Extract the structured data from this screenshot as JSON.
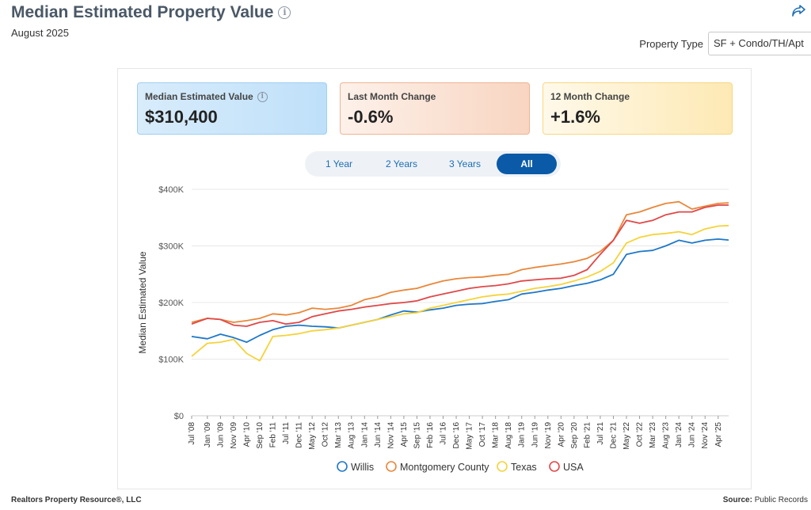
{
  "header": {
    "title": "Median Estimated Property Value",
    "subtitle": "August 2025",
    "property_type_label": "Property Type",
    "property_type_value": "SF + Condo/TH/Apt"
  },
  "kpis": [
    {
      "label": "Median Estimated Value",
      "value": "$310,400"
    },
    {
      "label": "Last Month Change",
      "value": "-0.6%"
    },
    {
      "label": "12 Month Change",
      "value": "+1.6%"
    }
  ],
  "tabs": [
    {
      "label": "1 Year"
    },
    {
      "label": "2 Years"
    },
    {
      "label": "3 Years"
    },
    {
      "label": "All"
    }
  ],
  "footer": {
    "left": "Realtors Property Resource®, LLC",
    "right_label": "Source:",
    "right_value": "Public Records"
  },
  "colors": {
    "willis": "#1f78c8",
    "montgomery": "#e8873a",
    "texas": "#f5d33a",
    "usa": "#e04848",
    "active_tab": "#0a5aa8"
  },
  "chart_data": {
    "type": "line",
    "ylabel": "Median Estimated Value",
    "ylim": [
      0,
      400000
    ],
    "yticks": [
      0,
      100000,
      200000,
      300000,
      400000
    ],
    "ytick_labels": [
      "$0",
      "$100K",
      "$200K",
      "$300K",
      "$400K"
    ],
    "x_start": "Jul '08",
    "x_end": "Aug '25",
    "x_tick_labels": [
      "Jul '08",
      "Jan '09",
      "Jun '09",
      "Nov '09",
      "Apr '10",
      "Sep '10",
      "Feb '11",
      "Jul '11",
      "Dec '11",
      "May '12",
      "Oct '12",
      "Mar '13",
      "Aug '13",
      "Jan '14",
      "Jun '14",
      "Nov '14",
      "Apr '15",
      "Sep '15",
      "Feb '16",
      "Jul '16",
      "Dec '16",
      "May '17",
      "Oct '17",
      "Mar '18",
      "Aug '18",
      "Jan '19",
      "Jun '19",
      "Nov '19",
      "Apr '20",
      "Sep '20",
      "Feb '21",
      "Jul '21",
      "Dec '21",
      "May '22",
      "Oct '22",
      "Mar '23",
      "Aug '23",
      "Jan '24",
      "Jun '24",
      "Nov '24",
      "Apr '25"
    ],
    "legend_position": "bottom",
    "grid": true,
    "series": [
      {
        "name": "Willis",
        "color": "#1f78c8",
        "points": [
          [
            "Jul '08",
            140000
          ],
          [
            "Jan '09",
            136000
          ],
          [
            "Jun '09",
            144000
          ],
          [
            "Nov '09",
            138000
          ],
          [
            "Apr '10",
            130000
          ],
          [
            "Sep '10",
            142000
          ],
          [
            "Feb '11",
            152000
          ],
          [
            "Jul '11",
            158000
          ],
          [
            "Dec '11",
            160000
          ],
          [
            "May '12",
            158000
          ],
          [
            "Oct '12",
            157000
          ],
          [
            "Mar '13",
            155000
          ],
          [
            "Aug '13",
            160000
          ],
          [
            "Jan '14",
            165000
          ],
          [
            "Jun '14",
            170000
          ],
          [
            "Nov '14",
            178000
          ],
          [
            "Apr '15",
            185000
          ],
          [
            "Sep '15",
            183000
          ],
          [
            "Feb '16",
            187000
          ],
          [
            "Jul '16",
            190000
          ],
          [
            "Dec '16",
            195000
          ],
          [
            "May '17",
            197000
          ],
          [
            "Oct '17",
            198000
          ],
          [
            "Mar '18",
            202000
          ],
          [
            "Aug '18",
            205000
          ],
          [
            "Jan '19",
            215000
          ],
          [
            "Jun '19",
            218000
          ],
          [
            "Nov '19",
            222000
          ],
          [
            "Apr '20",
            225000
          ],
          [
            "Sep '20",
            230000
          ],
          [
            "Feb '21",
            234000
          ],
          [
            "Jul '21",
            240000
          ],
          [
            "Dec '21",
            250000
          ],
          [
            "May '22",
            285000
          ],
          [
            "Oct '22",
            290000
          ],
          [
            "Mar '23",
            292000
          ],
          [
            "Aug '23",
            300000
          ],
          [
            "Jan '24",
            310000
          ],
          [
            "Jun '24",
            305000
          ],
          [
            "Nov '24",
            310000
          ],
          [
            "Apr '25",
            312000
          ],
          [
            "Aug '25",
            310400
          ]
        ]
      },
      {
        "name": "Montgomery County",
        "color": "#e8873a",
        "points": [
          [
            "Jul '08",
            165000
          ],
          [
            "Jan '09",
            172000
          ],
          [
            "Jun '09",
            170000
          ],
          [
            "Nov '09",
            165000
          ],
          [
            "Apr '10",
            168000
          ],
          [
            "Sep '10",
            172000
          ],
          [
            "Feb '11",
            180000
          ],
          [
            "Jul '11",
            178000
          ],
          [
            "Dec '11",
            182000
          ],
          [
            "May '12",
            190000
          ],
          [
            "Oct '12",
            188000
          ],
          [
            "Mar '13",
            190000
          ],
          [
            "Aug '13",
            195000
          ],
          [
            "Jan '14",
            205000
          ],
          [
            "Jun '14",
            210000
          ],
          [
            "Nov '14",
            218000
          ],
          [
            "Apr '15",
            222000
          ],
          [
            "Sep '15",
            225000
          ],
          [
            "Feb '16",
            232000
          ],
          [
            "Jul '16",
            238000
          ],
          [
            "Dec '16",
            242000
          ],
          [
            "May '17",
            244000
          ],
          [
            "Oct '17",
            245000
          ],
          [
            "Mar '18",
            248000
          ],
          [
            "Aug '18",
            250000
          ],
          [
            "Jan '19",
            258000
          ],
          [
            "Jun '19",
            262000
          ],
          [
            "Nov '19",
            265000
          ],
          [
            "Apr '20",
            268000
          ],
          [
            "Sep '20",
            272000
          ],
          [
            "Feb '21",
            278000
          ],
          [
            "Jul '21",
            290000
          ],
          [
            "Dec '21",
            310000
          ],
          [
            "May '22",
            355000
          ],
          [
            "Oct '22",
            360000
          ],
          [
            "Mar '23",
            368000
          ],
          [
            "Aug '23",
            375000
          ],
          [
            "Jan '24",
            378000
          ],
          [
            "Jun '24",
            365000
          ],
          [
            "Nov '24",
            370000
          ],
          [
            "Apr '25",
            375000
          ],
          [
            "Aug '25",
            376000
          ]
        ]
      },
      {
        "name": "Texas",
        "color": "#f5d33a",
        "points": [
          [
            "Jul '08",
            105000
          ],
          [
            "Jan '09",
            128000
          ],
          [
            "Jun '09",
            130000
          ],
          [
            "Nov '09",
            135000
          ],
          [
            "Apr '10",
            110000
          ],
          [
            "Sep '10",
            97000
          ],
          [
            "Feb '11",
            140000
          ],
          [
            "Jul '11",
            142000
          ],
          [
            "Dec '11",
            145000
          ],
          [
            "May '12",
            150000
          ],
          [
            "Oct '12",
            152000
          ],
          [
            "Mar '13",
            155000
          ],
          [
            "Aug '13",
            160000
          ],
          [
            "Jan '14",
            165000
          ],
          [
            "Jun '14",
            170000
          ],
          [
            "Nov '14",
            175000
          ],
          [
            "Apr '15",
            180000
          ],
          [
            "Sep '15",
            182000
          ],
          [
            "Feb '16",
            190000
          ],
          [
            "Jul '16",
            195000
          ],
          [
            "Dec '16",
            200000
          ],
          [
            "May '17",
            205000
          ],
          [
            "Oct '17",
            210000
          ],
          [
            "Mar '18",
            213000
          ],
          [
            "Aug '18",
            215000
          ],
          [
            "Jan '19",
            220000
          ],
          [
            "Jun '19",
            225000
          ],
          [
            "Nov '19",
            228000
          ],
          [
            "Apr '20",
            232000
          ],
          [
            "Sep '20",
            238000
          ],
          [
            "Feb '21",
            245000
          ],
          [
            "Jul '21",
            255000
          ],
          [
            "Dec '21",
            270000
          ],
          [
            "May '22",
            305000
          ],
          [
            "Oct '22",
            315000
          ],
          [
            "Mar '23",
            320000
          ],
          [
            "Aug '23",
            322000
          ],
          [
            "Jan '24",
            325000
          ],
          [
            "Jun '24",
            320000
          ],
          [
            "Nov '24",
            330000
          ],
          [
            "Apr '25",
            335000
          ],
          [
            "Aug '25",
            336000
          ]
        ]
      },
      {
        "name": "USA",
        "color": "#e04848",
        "points": [
          [
            "Jul '08",
            162000
          ],
          [
            "Jan '09",
            172000
          ],
          [
            "Jun '09",
            170000
          ],
          [
            "Nov '09",
            160000
          ],
          [
            "Apr '10",
            158000
          ],
          [
            "Sep '10",
            165000
          ],
          [
            "Feb '11",
            168000
          ],
          [
            "Jul '11",
            162000
          ],
          [
            "Dec '11",
            165000
          ],
          [
            "May '12",
            175000
          ],
          [
            "Oct '12",
            180000
          ],
          [
            "Mar '13",
            185000
          ],
          [
            "Aug '13",
            188000
          ],
          [
            "Jan '14",
            192000
          ],
          [
            "Jun '14",
            195000
          ],
          [
            "Nov '14",
            198000
          ],
          [
            "Apr '15",
            200000
          ],
          [
            "Sep '15",
            203000
          ],
          [
            "Feb '16",
            210000
          ],
          [
            "Jul '16",
            215000
          ],
          [
            "Dec '16",
            220000
          ],
          [
            "May '17",
            225000
          ],
          [
            "Oct '17",
            228000
          ],
          [
            "Mar '18",
            230000
          ],
          [
            "Aug '18",
            233000
          ],
          [
            "Jan '19",
            238000
          ],
          [
            "Jun '19",
            240000
          ],
          [
            "Nov '19",
            242000
          ],
          [
            "Apr '20",
            243000
          ],
          [
            "Sep '20",
            248000
          ],
          [
            "Feb '21",
            258000
          ],
          [
            "Jul '21",
            285000
          ],
          [
            "Dec '21",
            310000
          ],
          [
            "May '22",
            345000
          ],
          [
            "Oct '22",
            340000
          ],
          [
            "Mar '23",
            345000
          ],
          [
            "Aug '23",
            355000
          ],
          [
            "Jan '24",
            360000
          ],
          [
            "Jun '24",
            360000
          ],
          [
            "Nov '24",
            368000
          ],
          [
            "Apr '25",
            372000
          ],
          [
            "Aug '25",
            372000
          ]
        ]
      }
    ]
  }
}
